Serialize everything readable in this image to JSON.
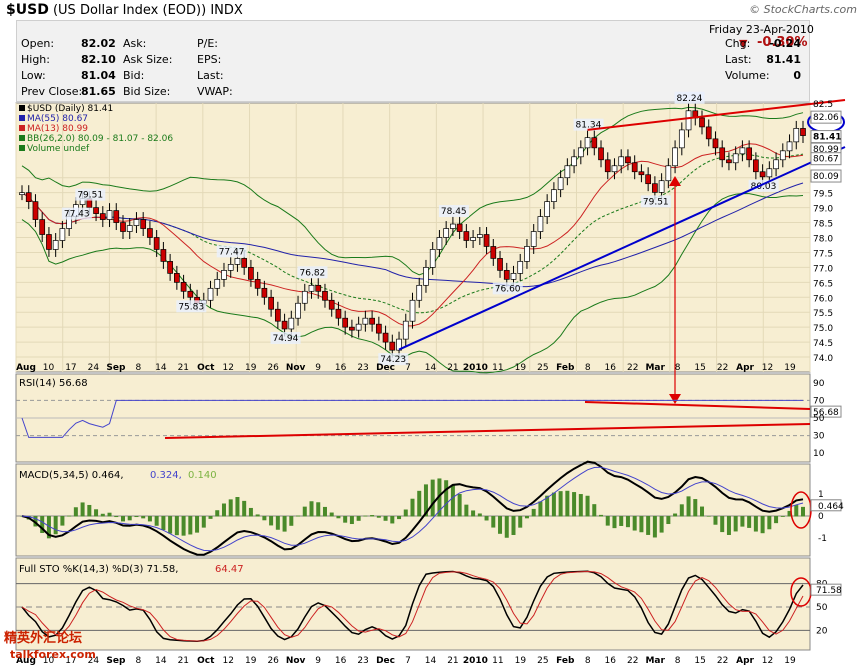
{
  "header": {
    "symbol": "$USD",
    "name": "(US Dollar Index (EOD))",
    "exchange": "INDX",
    "watermark": "© StockCharts.com"
  },
  "quote": {
    "date": "Friday  23-Apr-2010",
    "change_pct": "-0.30%",
    "rows": [
      {
        "label": "Open:",
        "value": "82.02",
        "label2": "Ask:",
        "value2": "",
        "label3": "P/E:",
        "value3": "",
        "label4": "Chg:",
        "value4": "-0.24"
      },
      {
        "label": "High:",
        "value": "82.10",
        "label2": "Ask Size:",
        "value2": "",
        "label3": "EPS:",
        "value3": "",
        "label4": "Last:",
        "value4": "81.41"
      },
      {
        "label": "Low:",
        "value": "81.04",
        "label2": "Bid:",
        "value2": "",
        "label3": "Last:",
        "value3": "",
        "label4": "Volume:",
        "value4": "0"
      },
      {
        "label": "Prev Close:",
        "value": "81.65",
        "label2": "Bid Size:",
        "value2": "",
        "label3": "VWAP:",
        "value3": "",
        "label4": "",
        "value4": ""
      }
    ]
  },
  "colors": {
    "panel_bg": "#f7eed2",
    "price_line": "#000000",
    "ma55": "#2222aa",
    "ma13": "#cc2222",
    "bb": "#1a7a1a",
    "rsi": "#4444cc",
    "annot_red": "#dd0000",
    "annot_blue": "#0000cc",
    "macd_hist": "#4a8a2a",
    "sto_d": "#cc2222"
  },
  "brand": {
    "line1": "精英外汇论坛",
    "line2": "talkforex.com"
  },
  "chart_data": [
    {
      "type": "candlestick",
      "title": "$USD (Daily) 81.41",
      "legend": [
        {
          "label": "$USD (Daily) 81.41",
          "color": "#000000"
        },
        {
          "label": "MA(55) 80.67",
          "color": "#2222aa"
        },
        {
          "label": "MA(13) 80.99",
          "color": "#cc2222"
        },
        {
          "label": "BB(26,2.0) 80.09 - 81.07 - 82.06",
          "color": "#1a7a1a"
        },
        {
          "label": "Volume undef",
          "color": "#1a7a1a"
        }
      ],
      "ylim": [
        73.5,
        82.5
      ],
      "y_ticks": [
        74.0,
        74.5,
        75.0,
        75.5,
        76.0,
        76.5,
        77.0,
        77.5,
        78.0,
        78.5,
        79.0,
        79.5,
        80.0
      ],
      "x_tick_labels": [
        "Aug",
        "10",
        "17",
        "24",
        "Sep",
        "8",
        "14",
        "21",
        "Oct",
        "12",
        "19",
        "26",
        "Nov",
        "9",
        "16",
        "23",
        "Dec",
        "7",
        "14",
        "21",
        "2010",
        "11",
        "19",
        "25",
        "Feb",
        "8",
        "16",
        "22",
        "Mar",
        "8",
        "15",
        "22",
        "Apr",
        "12",
        "19"
      ],
      "close": [
        79.5,
        79.2,
        78.6,
        78.1,
        77.6,
        77.9,
        78.3,
        78.7,
        79.1,
        79.3,
        79.0,
        78.8,
        78.6,
        78.9,
        78.5,
        78.2,
        78.4,
        78.6,
        78.3,
        78.0,
        77.6,
        77.2,
        76.8,
        76.5,
        76.2,
        76.0,
        75.8,
        75.9,
        76.3,
        76.6,
        76.9,
        77.1,
        77.3,
        77.0,
        76.6,
        76.3,
        76.0,
        75.6,
        75.2,
        74.94,
        75.3,
        75.8,
        76.2,
        76.4,
        76.2,
        75.9,
        75.6,
        75.3,
        75.0,
        74.9,
        75.1,
        75.3,
        75.1,
        74.8,
        74.5,
        74.23,
        74.6,
        75.2,
        75.9,
        76.4,
        77.0,
        77.6,
        78.0,
        78.3,
        78.45,
        78.2,
        77.9,
        78.0,
        78.1,
        77.7,
        77.3,
        76.9,
        76.6,
        76.8,
        77.2,
        77.7,
        78.2,
        78.7,
        79.2,
        79.6,
        80.0,
        80.4,
        80.7,
        81.0,
        81.34,
        81.0,
        80.6,
        80.2,
        80.4,
        80.7,
        80.5,
        80.2,
        80.1,
        79.8,
        79.51,
        79.9,
        80.4,
        81.0,
        81.6,
        82.24,
        82.0,
        81.7,
        81.3,
        81.0,
        80.6,
        80.5,
        80.8,
        81.0,
        80.6,
        80.2,
        80.03,
        80.3,
        80.6,
        80.9,
        81.2,
        81.65,
        81.41
      ],
      "labels": [
        {
          "text": "77.43"
        },
        {
          "text": "79.51"
        },
        {
          "text": "75.83"
        },
        {
          "text": "77.47"
        },
        {
          "text": "74.94"
        },
        {
          "text": "76.82"
        },
        {
          "text": "74.23"
        },
        {
          "text": "78.45"
        },
        {
          "text": "76.60"
        },
        {
          "text": "81.34"
        },
        {
          "text": "79.51"
        },
        {
          "text": "82.24"
        },
        {
          "text": "80.03"
        }
      ],
      "right_labels": [
        "82.5",
        "82.06",
        "81.41",
        "80.99",
        "80.67",
        "80.09",
        "79.5",
        "79.0",
        "78.5",
        "78.0",
        "77.5",
        "77.0",
        "76.5",
        "76.0",
        "75.5",
        "75.0",
        "74.5",
        "74.0"
      ]
    },
    {
      "type": "line",
      "title": "RSI(14) 56.68",
      "ylim": [
        0,
        100
      ],
      "y_ticks": [
        "90",
        "70",
        "56.68",
        "50",
        "30",
        "10"
      ],
      "note": "RSI oscillates between roughly 30 and 70"
    },
    {
      "type": "line",
      "title": "MACD(5,34,5) 0.464, 0.324, 0.140",
      "title_parts": [
        "MACD(5,34,5) 0.464,",
        "0.324,",
        "0.140"
      ],
      "y_ticks": [
        "1",
        "0.464",
        "0",
        "-1"
      ]
    },
    {
      "type": "line",
      "title": "Full STO %K(14,3) %D(3) 71.58, 64.47",
      "title_parts": [
        "Full STO %K(14,3) %D(3) 71.58,",
        "64.47"
      ],
      "y_ticks": [
        "80",
        "71.58",
        "50",
        "20"
      ]
    }
  ]
}
